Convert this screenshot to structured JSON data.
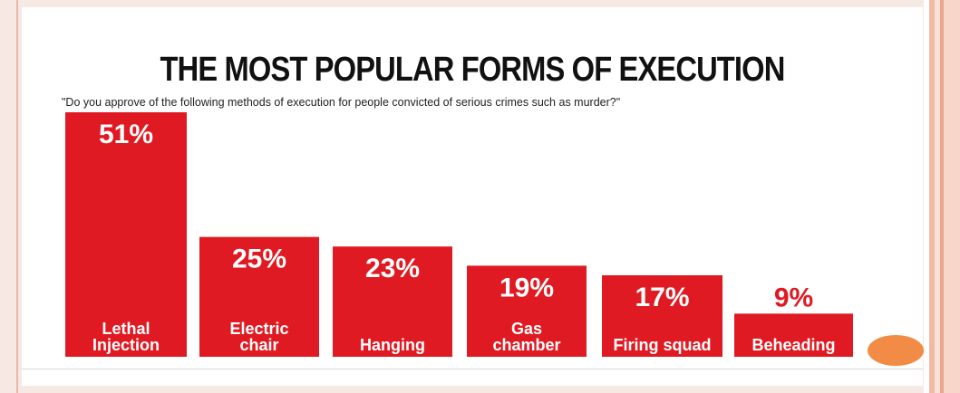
{
  "chart_data": {
    "type": "bar",
    "title": "THE MOST POPULAR FORMS OF EXECUTION",
    "subtitle": "\"Do you approve of the following methods of execution for people convicted of serious crimes such as murder?\"",
    "categories": [
      [
        "Lethal",
        "Injection"
      ],
      [
        "Electric",
        "chair"
      ],
      [
        "Hanging"
      ],
      [
        "Gas",
        "chamber"
      ],
      [
        "Firing squad"
      ],
      [
        "Beheading"
      ]
    ],
    "values": [
      51,
      25,
      23,
      19,
      17,
      9
    ],
    "value_labels": [
      "51%",
      "25%",
      "23%",
      "19%",
      "17%",
      "9%"
    ],
    "ylim": [
      0,
      51
    ],
    "bar_color": "#e01a22",
    "grid": false,
    "legend": "none"
  }
}
